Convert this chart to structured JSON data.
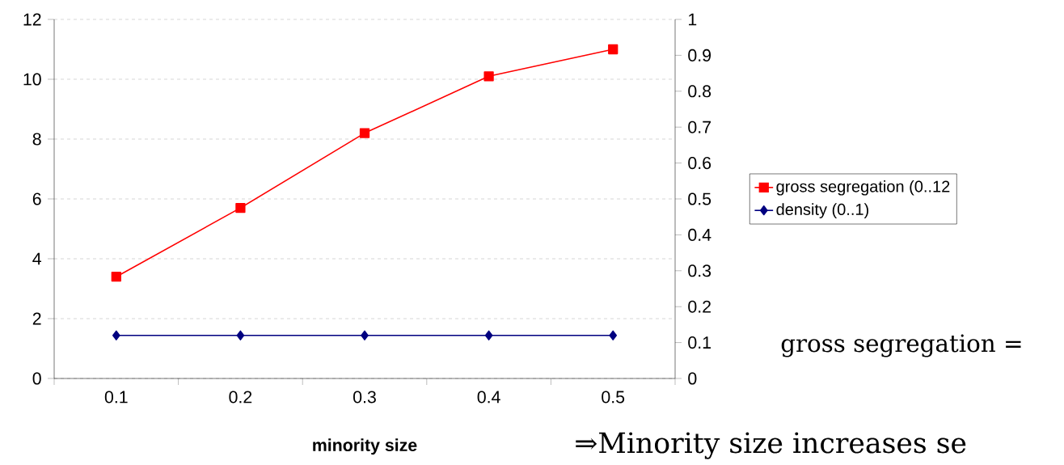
{
  "chart_data": {
    "type": "line",
    "xlabel": "minority size",
    "categories": [
      "0.1",
      "0.2",
      "0.3",
      "0.4",
      "0.5"
    ],
    "series": [
      {
        "name": "gross segregation (0..12",
        "color": "#ff0000",
        "marker": "square",
        "values": [
          3.4,
          5.7,
          8.2,
          10.1,
          11.0
        ]
      },
      {
        "name": "density (0..1)",
        "color": "#000080",
        "marker": "diamond",
        "axis": "y2",
        "values": [
          0.12,
          0.12,
          0.12,
          0.12,
          0.12
        ]
      }
    ],
    "ylim": [
      0,
      12
    ],
    "yticks": [
      0,
      2,
      4,
      6,
      8,
      10,
      12
    ],
    "y2lim": [
      0,
      1
    ],
    "y2ticks": [
      0,
      0.1,
      0.2,
      0.3,
      0.4,
      0.5,
      0.6,
      0.7,
      0.8,
      0.9,
      1
    ],
    "grid": "y",
    "legend": "right",
    "annotations": [
      "gross segregation =",
      "⇒Minority size increases se"
    ]
  }
}
